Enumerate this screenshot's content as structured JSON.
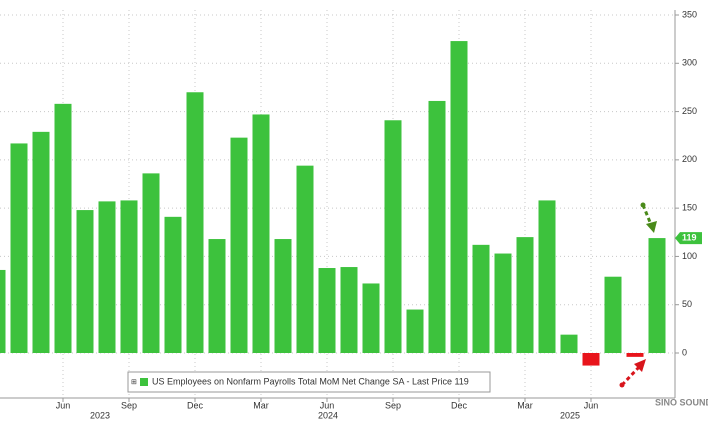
{
  "chart_data": {
    "type": "bar",
    "categories": [
      null,
      null,
      null,
      "Jun",
      null,
      null,
      "Sep",
      null,
      null,
      "Dec",
      null,
      null,
      "Mar",
      null,
      null,
      "Jun",
      null,
      null,
      "Sep",
      null,
      null,
      "Dec",
      null,
      null,
      "Mar",
      null,
      null,
      "Jun",
      null,
      null,
      null
    ],
    "values": [
      86,
      217,
      229,
      258,
      148,
      157,
      158,
      186,
      141,
      270,
      118,
      223,
      247,
      118,
      194,
      88,
      89,
      72,
      241,
      45,
      261,
      323,
      112,
      103,
      120,
      158,
      19,
      -13,
      79,
      -4,
      119
    ],
    "years": [
      "2023",
      "2024",
      "2025"
    ],
    "color": "#3dc23d",
    "negative_color": "#e8141b",
    "ylim": [
      -40,
      350
    ],
    "yticks": [
      0,
      50,
      100,
      150,
      200,
      250,
      300,
      350
    ],
    "grid": true,
    "legend": "US Employees on Nonfarm Payrolls Total MoM Net Change SA - Last Price 119",
    "watermark": "SINO SOUND"
  }
}
